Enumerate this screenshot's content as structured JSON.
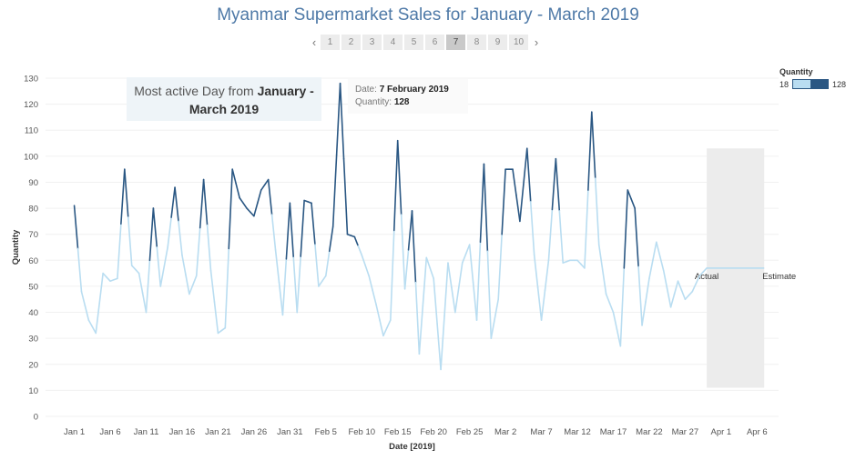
{
  "title": "Myanmar Supermarket Sales for January - March 2019",
  "pager": {
    "prev_icon": "chevron-left-icon",
    "next_icon": "chevron-right-icon",
    "pages": [
      "1",
      "2",
      "3",
      "4",
      "5",
      "6",
      "7",
      "8",
      "9",
      "10"
    ],
    "active_page": "7"
  },
  "legend": {
    "title": "Quantity",
    "min": "18",
    "max": "128"
  },
  "annotation": {
    "prefix": "Most active Day from ",
    "bold": "January - March 2019"
  },
  "tooltip": {
    "date_label": "Date:",
    "date_value": "7 February 2019",
    "qty_label": "Quantity:",
    "qty_value": "128"
  },
  "colors": {
    "low": "#b9ddf1",
    "high": "#2a5783",
    "title": "#4e79a7",
    "forecast_band": "#ececec"
  },
  "chart_data": {
    "type": "line",
    "title": "Myanmar Supermarket Sales for January - March 2019",
    "xlabel": "Date [2019]",
    "ylabel": "Quantity",
    "ylim": [
      0,
      130
    ],
    "yticks": [
      0,
      10,
      20,
      30,
      40,
      50,
      60,
      70,
      80,
      90,
      100,
      110,
      120,
      130
    ],
    "xtick_labels": [
      "Jan 1",
      "Jan 6",
      "Jan 11",
      "Jan 16",
      "Jan 21",
      "Jan 26",
      "Jan 31",
      "Feb 5",
      "Feb 10",
      "Feb 15",
      "Feb 20",
      "Feb 25",
      "Mar 2",
      "Mar 7",
      "Mar 12",
      "Mar 17",
      "Mar 22",
      "Mar 27",
      "Apr 1",
      "Apr 6"
    ],
    "xtick_dates": [
      "2019-01-01",
      "2019-01-06",
      "2019-01-11",
      "2019-01-16",
      "2019-01-21",
      "2019-01-26",
      "2019-01-31",
      "2019-02-05",
      "2019-02-10",
      "2019-02-15",
      "2019-02-20",
      "2019-02-25",
      "2019-03-02",
      "2019-03-07",
      "2019-03-12",
      "2019-03-17",
      "2019-03-22",
      "2019-03-27",
      "2019-04-01",
      "2019-04-06"
    ],
    "x_range": [
      "2018-12-28",
      "2019-04-09"
    ],
    "grid": true,
    "color_scale": {
      "field": "Quantity",
      "min": 18,
      "max": 128
    },
    "series": [
      {
        "values": [
          [
            "2019-01-01",
            81
          ],
          [
            "2019-01-02",
            48
          ],
          [
            "2019-01-03",
            37
          ],
          [
            "2019-01-04",
            32
          ],
          [
            "2019-01-05",
            55
          ],
          [
            "2019-01-06",
            52
          ],
          [
            "2019-01-07",
            53
          ],
          [
            "2019-01-08",
            95
          ],
          [
            "2019-01-09",
            58
          ],
          [
            "2019-01-10",
            55
          ],
          [
            "2019-01-11",
            40
          ],
          [
            "2019-01-12",
            80
          ],
          [
            "2019-01-13",
            50
          ],
          [
            "2019-01-14",
            65
          ],
          [
            "2019-01-15",
            88
          ],
          [
            "2019-01-16",
            62
          ],
          [
            "2019-01-17",
            47
          ],
          [
            "2019-01-18",
            54
          ],
          [
            "2019-01-19",
            91
          ],
          [
            "2019-01-20",
            56
          ],
          [
            "2019-01-21",
            32
          ],
          [
            "2019-01-22",
            34
          ],
          [
            "2019-01-23",
            95
          ],
          [
            "2019-01-24",
            84
          ],
          [
            "2019-01-25",
            80
          ],
          [
            "2019-01-26",
            77
          ],
          [
            "2019-01-27",
            87
          ],
          [
            "2019-01-28",
            91
          ],
          [
            "2019-01-29",
            64
          ],
          [
            "2019-01-30",
            39
          ],
          [
            "2019-01-31",
            82
          ],
          [
            "2019-02-01",
            40
          ],
          [
            "2019-02-02",
            83
          ],
          [
            "2019-02-03",
            82
          ],
          [
            "2019-02-04",
            50
          ],
          [
            "2019-02-05",
            54
          ],
          [
            "2019-02-06",
            73
          ],
          [
            "2019-02-07",
            128
          ],
          [
            "2019-02-08",
            70
          ],
          [
            "2019-02-09",
            69
          ],
          [
            "2019-02-10",
            62
          ],
          [
            "2019-02-11",
            54
          ],
          [
            "2019-02-12",
            43
          ],
          [
            "2019-02-13",
            31
          ],
          [
            "2019-02-14",
            37
          ],
          [
            "2019-02-15",
            106
          ],
          [
            "2019-02-16",
            49
          ],
          [
            "2019-02-17",
            79
          ],
          [
            "2019-02-18",
            24
          ],
          [
            "2019-02-19",
            61
          ],
          [
            "2019-02-20",
            53
          ],
          [
            "2019-02-21",
            18
          ],
          [
            "2019-02-22",
            59
          ],
          [
            "2019-02-23",
            40
          ],
          [
            "2019-02-24",
            59
          ],
          [
            "2019-02-25",
            66
          ],
          [
            "2019-02-26",
            37
          ],
          [
            "2019-02-27",
            97
          ],
          [
            "2019-02-28",
            30
          ],
          [
            "2019-03-01",
            45
          ],
          [
            "2019-03-02",
            95
          ],
          [
            "2019-03-03",
            95
          ],
          [
            "2019-03-04",
            75
          ],
          [
            "2019-03-05",
            103
          ],
          [
            "2019-03-06",
            62
          ],
          [
            "2019-03-07",
            37
          ],
          [
            "2019-03-08",
            60
          ],
          [
            "2019-03-09",
            99
          ],
          [
            "2019-03-10",
            59
          ],
          [
            "2019-03-11",
            60
          ],
          [
            "2019-03-12",
            60
          ],
          [
            "2019-03-13",
            57
          ],
          [
            "2019-03-14",
            117
          ],
          [
            "2019-03-15",
            66
          ],
          [
            "2019-03-16",
            47
          ],
          [
            "2019-03-17",
            40
          ],
          [
            "2019-03-18",
            27
          ],
          [
            "2019-03-19",
            87
          ],
          [
            "2019-03-20",
            80
          ],
          [
            "2019-03-21",
            35
          ],
          [
            "2019-03-22",
            53
          ],
          [
            "2019-03-23",
            67
          ],
          [
            "2019-03-24",
            56
          ],
          [
            "2019-03-25",
            42
          ],
          [
            "2019-03-26",
            52
          ],
          [
            "2019-03-27",
            45
          ],
          [
            "2019-03-28",
            48
          ],
          [
            "2019-03-29",
            54
          ],
          [
            "2019-03-30",
            57
          ]
        ]
      }
    ],
    "forecast": {
      "start": "2019-03-30",
      "end": "2019-04-07",
      "value": 57,
      "band_upper": 103,
      "band_lower": 11,
      "labels": {
        "actual": "Actual",
        "estimate": "Estimate"
      }
    }
  }
}
